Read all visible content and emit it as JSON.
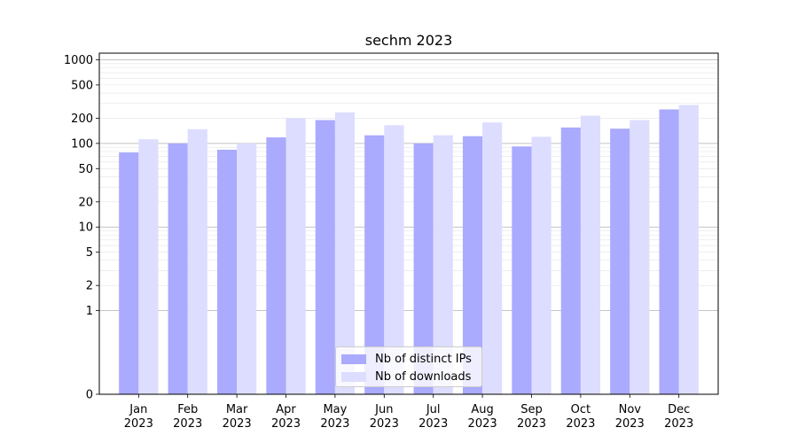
{
  "chart_data": {
    "type": "bar",
    "title": "sechm 2023",
    "xlabel": "",
    "ylabel": "",
    "yscale": "symlog",
    "ylim": [
      0,
      1200
    ],
    "yticks": [
      0,
      1,
      2,
      5,
      10,
      20,
      50,
      100,
      200,
      500,
      1000
    ],
    "ytick_labels": [
      "0",
      "1",
      "2",
      "5",
      "10",
      "20",
      "50",
      "100",
      "200",
      "500",
      "1000"
    ],
    "categories": [
      "Jan\n2023",
      "Feb\n2023",
      "Mar\n2023",
      "Apr\n2023",
      "May\n2023",
      "Jun\n2023",
      "Jul\n2023",
      "Aug\n2023",
      "Sep\n2023",
      "Oct\n2023",
      "Nov\n2023",
      "Dec\n2023"
    ],
    "category_lines": [
      [
        "Jan",
        "2023"
      ],
      [
        "Feb",
        "2023"
      ],
      [
        "Mar",
        "2023"
      ],
      [
        "Apr",
        "2023"
      ],
      [
        "May",
        "2023"
      ],
      [
        "Jun",
        "2023"
      ],
      [
        "Jul",
        "2023"
      ],
      [
        "Aug",
        "2023"
      ],
      [
        "Sep",
        "2023"
      ],
      [
        "Oct",
        "2023"
      ],
      [
        "Nov",
        "2023"
      ],
      [
        "Dec",
        "2023"
      ]
    ],
    "series": [
      {
        "name": "Nb of distinct IPs",
        "color": "#aaaaff",
        "values": [
          78,
          100,
          84,
          118,
          190,
          125,
          100,
          122,
          92,
          155,
          150,
          255
        ]
      },
      {
        "name": "Nb of downloads",
        "color": "#ddddff",
        "values": [
          112,
          148,
          100,
          200,
          235,
          165,
          125,
          178,
          120,
          215,
          190,
          288
        ]
      }
    ],
    "grid": true,
    "legend_position": "lower center"
  }
}
